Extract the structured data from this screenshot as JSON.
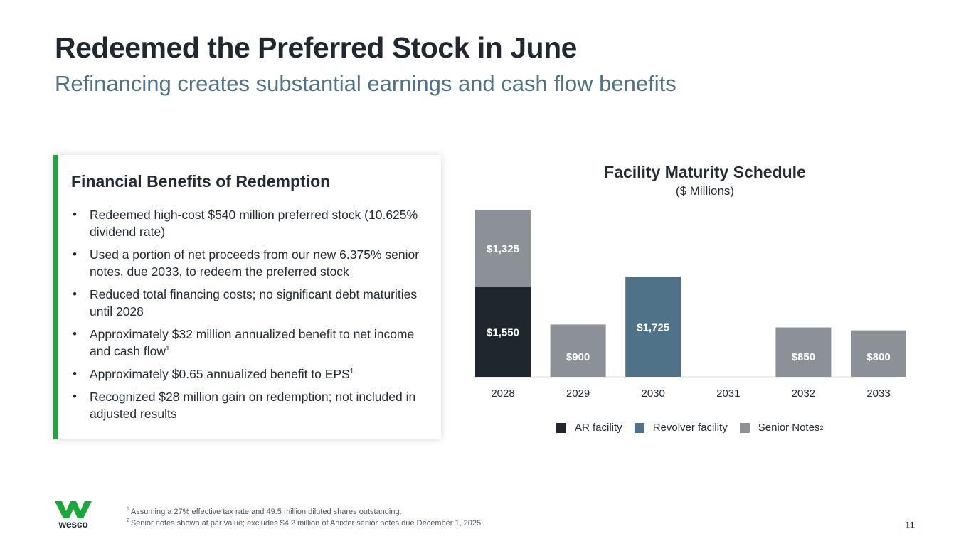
{
  "header": {
    "title": "Redeemed the Preferred Stock in June",
    "subtitle": "Refinancing creates substantial earnings and cash flow benefits"
  },
  "benefits": {
    "title": "Financial Benefits of Redemption",
    "items": [
      {
        "text": "Redeemed high-cost $540 million preferred stock (10.625% dividend rate)",
        "sup": ""
      },
      {
        "text": "Used a portion of net proceeds from our new 6.375% senior notes, due 2033, to redeem the preferred stock",
        "sup": ""
      },
      {
        "text": "Reduced total financing costs; no significant debt maturities until 2028",
        "sup": ""
      },
      {
        "text": "Approximately $32 million annualized benefit to net income and cash flow",
        "sup": "1"
      },
      {
        "text": "Approximately $0.65 annualized benefit to EPS",
        "sup": "1"
      },
      {
        "text": "Recognized $28 million gain on redemption; not included in adjusted results",
        "sup": ""
      }
    ]
  },
  "colors": {
    "ar_facility": "#1f262e",
    "revolver_facility": "#4f7288",
    "senior_notes": "#8b9196",
    "accent": "#1aa83a"
  },
  "chart_data": {
    "type": "bar",
    "stacked": true,
    "title": "Facility Maturity Schedule",
    "subtitle": "($ Millions)",
    "categories": [
      "2028",
      "2029",
      "2030",
      "2031",
      "2032",
      "2033"
    ],
    "series": [
      {
        "name": "AR facility",
        "sup": "",
        "color_key": "ar_facility",
        "values": [
          1550,
          0,
          0,
          0,
          0,
          0
        ],
        "labels": [
          "$1,550",
          "",
          "",
          "",
          "",
          ""
        ]
      },
      {
        "name": "Revolver facility",
        "sup": "",
        "color_key": "revolver_facility",
        "values": [
          0,
          0,
          1725,
          0,
          0,
          0
        ],
        "labels": [
          "",
          "",
          "$1,725",
          "",
          "",
          ""
        ]
      },
      {
        "name": "Senior Notes",
        "sup": "2",
        "color_key": "senior_notes",
        "values": [
          1325,
          900,
          0,
          0,
          850,
          800
        ],
        "labels": [
          "$1,325",
          "$900",
          "",
          "",
          "$850",
          "$800"
        ]
      }
    ],
    "ylim": [
      0,
      2875
    ],
    "legend_position": "bottom"
  },
  "footnotes": {
    "items": [
      {
        "sup": "1",
        "text": "Assuming a 27% effective tax rate and 49.5 million diluted shares outstanding."
      },
      {
        "sup": "2",
        "text": "Senior notes shown at par value; excludes $4.2 million of Anixter senior notes due December 1, 2025."
      }
    ]
  },
  "logo": {
    "text": "wesco"
  },
  "page": {
    "number": "11"
  }
}
